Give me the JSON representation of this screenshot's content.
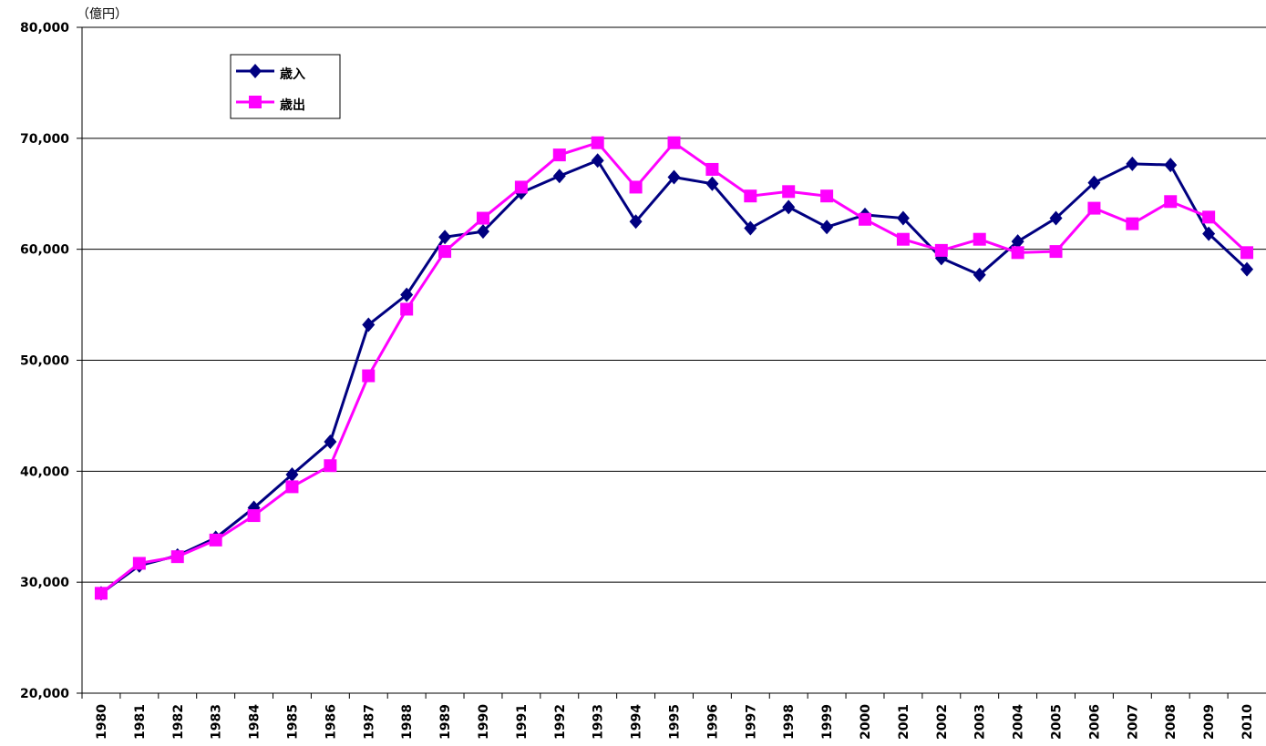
{
  "chart_data": {
    "type": "line",
    "y_label": "（億円）",
    "categories": [
      "1980",
      "1981",
      "1982",
      "1983",
      "1984",
      "1985",
      "1986",
      "1987",
      "1988",
      "1989",
      "1990",
      "1991",
      "1992",
      "1993",
      "1994",
      "1995",
      "1996",
      "1997",
      "1998",
      "1999",
      "2000",
      "2001",
      "2002",
      "2003",
      "2004",
      "2005",
      "2006",
      "2007",
      "2008",
      "2009",
      "2010"
    ],
    "series": [
      {
        "name": "歳入",
        "color": "#000080",
        "marker": "diamond",
        "values": [
          29000,
          31500,
          32400,
          34000,
          36700,
          39700,
          42650,
          53200,
          55900,
          61100,
          61600,
          65100,
          66600,
          68000,
          62500,
          66500,
          65900,
          61900,
          63800,
          62000,
          63100,
          62800,
          59200,
          57700,
          60700,
          62800,
          66000,
          67700,
          67600,
          61400,
          58200
        ]
      },
      {
        "name": "歳出",
        "color": "#ff00ff",
        "marker": "square",
        "values": [
          29000,
          31700,
          32300,
          33800,
          36000,
          38600,
          40500,
          48600,
          54600,
          59800,
          62800,
          65600,
          68500,
          69600,
          65600,
          69600,
          67200,
          64800,
          65200,
          64800,
          62700,
          60900,
          59900,
          60900,
          59700,
          59800,
          63700,
          62300,
          64300,
          62900,
          59700
        ]
      }
    ],
    "ylim": [
      20000,
      80000
    ],
    "yticks": [
      {
        "value": 20000,
        "label": "20,000"
      },
      {
        "value": 30000,
        "label": "30,000"
      },
      {
        "value": 40000,
        "label": "40,000"
      },
      {
        "value": 50000,
        "label": "50,000"
      },
      {
        "value": 60000,
        "label": "60,000"
      },
      {
        "value": 70000,
        "label": "70,000"
      },
      {
        "value": 80000,
        "label": "80,000"
      }
    ],
    "grid": true,
    "legend": "upper-left"
  }
}
